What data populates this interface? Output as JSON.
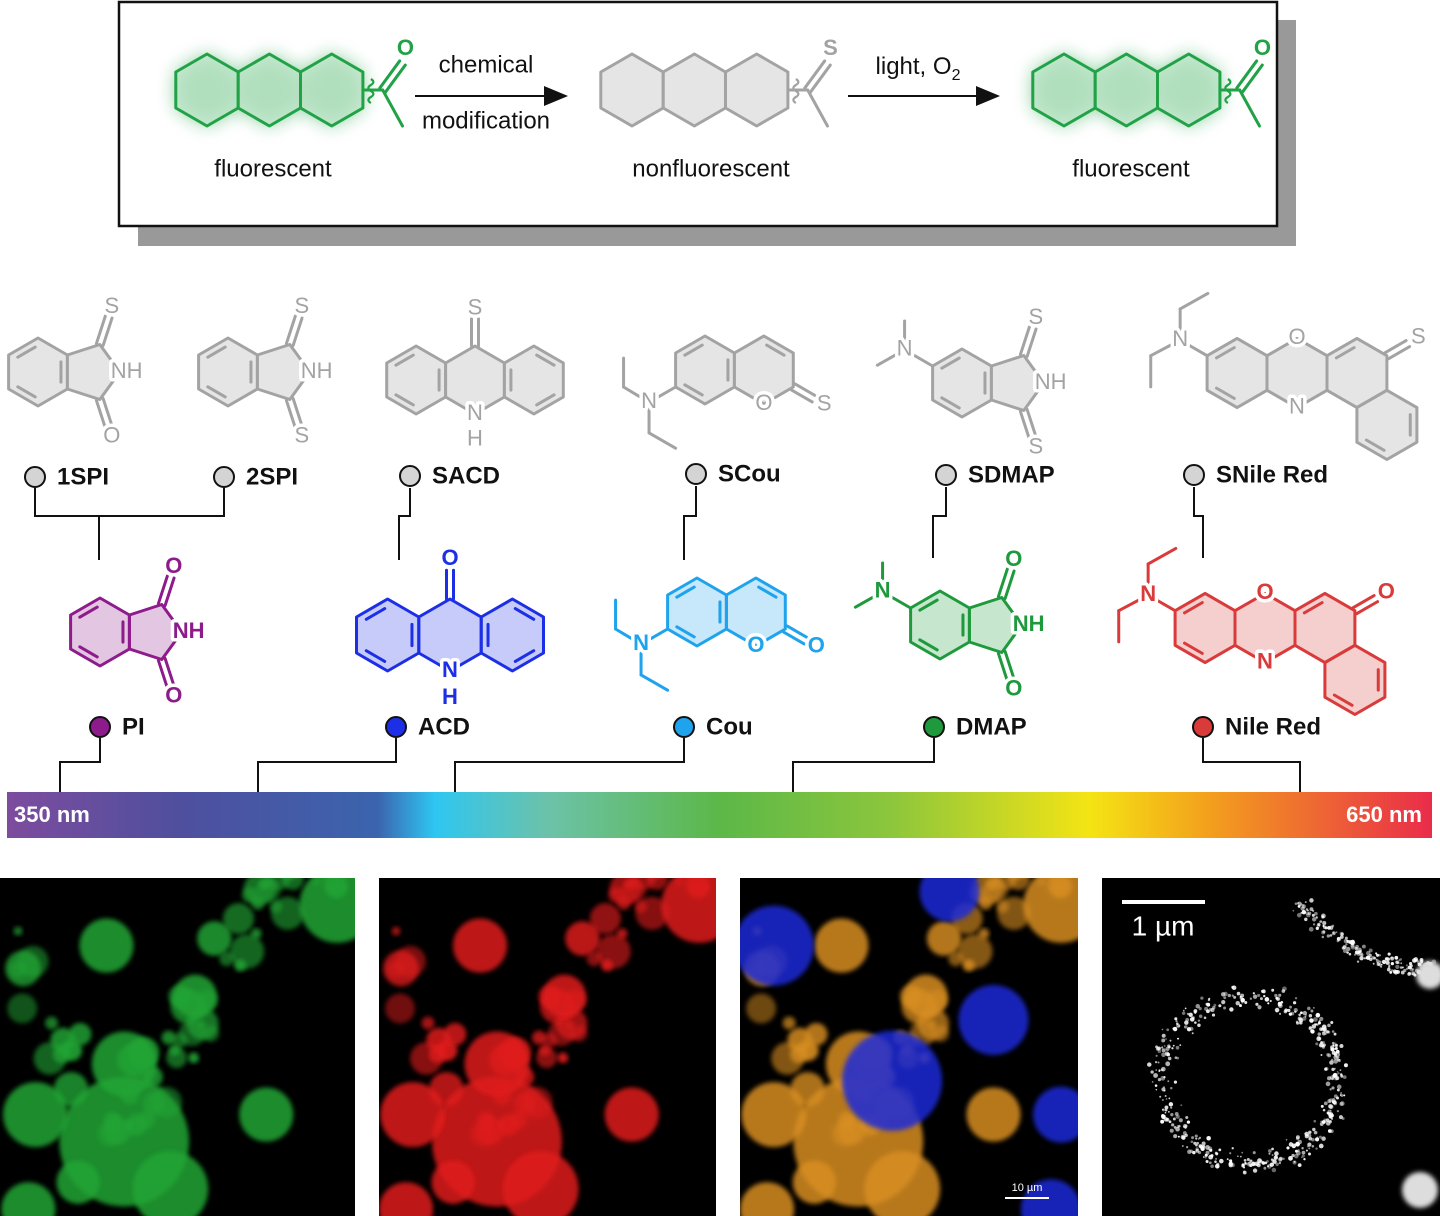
{
  "scheme": {
    "step1": {
      "line1": "chemical",
      "line2": "modification"
    },
    "step2": {
      "text": "light, O",
      "sub": "2"
    },
    "molecules": [
      {
        "label": "fluorescent",
        "atom": "O"
      },
      {
        "label": "nonfluorescent",
        "atom": "S"
      },
      {
        "label": "fluorescent",
        "atom": "O"
      }
    ]
  },
  "thiones": [
    {
      "name": "1SPI",
      "atoms": [
        "S",
        "NH",
        "O"
      ]
    },
    {
      "name": "2SPI",
      "atoms": [
        "S",
        "NH",
        "S"
      ]
    },
    {
      "name": "SACD",
      "atoms": [
        "S",
        "N",
        "H"
      ]
    },
    {
      "name": "SCou",
      "atoms": [
        "N",
        "O",
        "S"
      ]
    },
    {
      "name": "SDMAP",
      "atoms": [
        "N",
        "S",
        "NH",
        "S"
      ]
    },
    {
      "name": "SNile Red",
      "atoms": [
        "N",
        "O",
        "N",
        "S"
      ]
    }
  ],
  "parents": [
    {
      "name": "PI",
      "color": "#8e1b8c",
      "atoms": [
        "O",
        "NH",
        "O"
      ]
    },
    {
      "name": "ACD",
      "color": "#1c2fe6",
      "atoms": [
        "O",
        "N",
        "H"
      ]
    },
    {
      "name": "Cou",
      "color": "#1ea3ec",
      "atoms": [
        "N",
        "O",
        "O"
      ]
    },
    {
      "name": "DMAP",
      "color": "#1e9a3c",
      "atoms": [
        "N",
        "O",
        "NH",
        "O"
      ]
    },
    {
      "name": "Nile Red",
      "color": "#d93a3a",
      "atoms": [
        "N",
        "O",
        "N",
        "O"
      ]
    }
  ],
  "spectrum": {
    "start": "350 nm",
    "end": "650 nm"
  },
  "micrographs": {
    "scale_bar_1": "10 µm",
    "scale_bar_2": "1 µm"
  }
}
